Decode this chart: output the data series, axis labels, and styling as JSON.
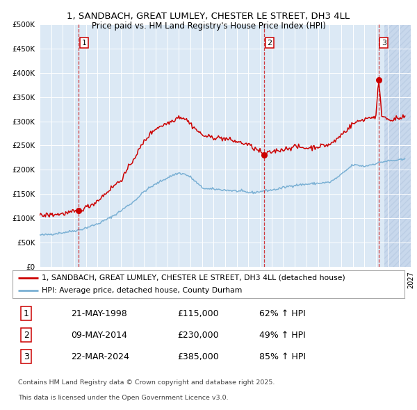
{
  "title1": "1, SANDBACH, GREAT LUMLEY, CHESTER LE STREET, DH3 4LL",
  "title2": "Price paid vs. HM Land Registry's House Price Index (HPI)",
  "legend_red": "1, SANDBACH, GREAT LUMLEY, CHESTER LE STREET, DH3 4LL (detached house)",
  "legend_blue": "HPI: Average price, detached house, County Durham",
  "sale1_date": "21-MAY-1998",
  "sale1_price": 115000,
  "sale1_pct": "62% ↑ HPI",
  "sale2_date": "09-MAY-2014",
  "sale2_price": 230000,
  "sale2_pct": "49% ↑ HPI",
  "sale3_date": "22-MAR-2024",
  "sale3_price": 385000,
  "sale3_pct": "85% ↑ HPI",
  "footnote1": "Contains HM Land Registry data © Crown copyright and database right 2025.",
  "footnote2": "This data is licensed under the Open Government Licence v3.0.",
  "bg_color": "#dce9f5",
  "hatch_color": "#c8d8ec",
  "grid_color": "#ffffff",
  "red_color": "#cc0000",
  "blue_color": "#7ab0d4",
  "ylim": [
    0,
    500000
  ],
  "yticks": [
    0,
    50000,
    100000,
    150000,
    200000,
    250000,
    300000,
    350000,
    400000,
    450000,
    500000
  ],
  "sale1_x": 1998.38,
  "sale2_x": 2014.35,
  "sale3_x": 2024.22,
  "xmin": 1995.0,
  "xmax": 2027.0,
  "hatch_start": 2024.75
}
